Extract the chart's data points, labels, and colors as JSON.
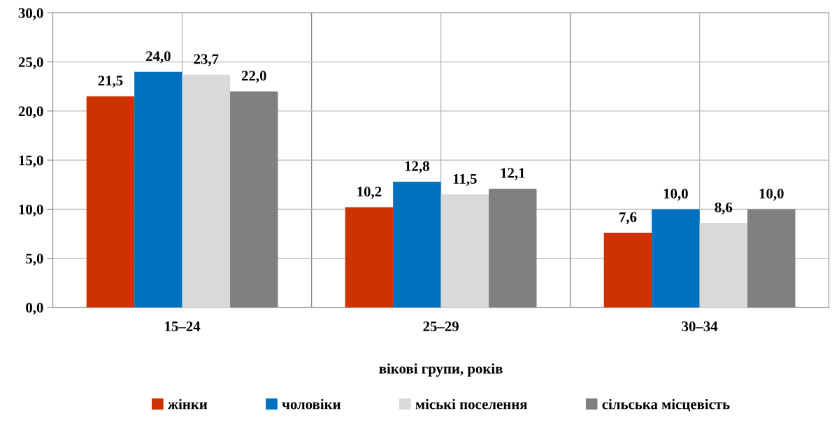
{
  "chart_data": {
    "type": "bar",
    "xlabel": "вікові групи, років",
    "categories": [
      "15–24",
      "25–29",
      "30–34"
    ],
    "series": [
      {
        "name": "жінки",
        "color": "#cc3300",
        "values": [
          21.5,
          10.2,
          7.6
        ],
        "value_labels": [
          "21,5",
          "10,2",
          "7,6"
        ]
      },
      {
        "name": "чоловіки",
        "color": "#0070c0",
        "values": [
          24.0,
          12.8,
          10.0
        ],
        "value_labels": [
          "24,0",
          "12,8",
          "10,0"
        ]
      },
      {
        "name": "міські поселення",
        "color": "#d9d9d9",
        "values": [
          23.7,
          11.5,
          8.6
        ],
        "value_labels": [
          "23,7",
          "11,5",
          "8,6"
        ]
      },
      {
        "name": "сільська місцевість",
        "color": "#808080",
        "values": [
          22.0,
          12.1,
          10.0
        ],
        "value_labels": [
          "22,0",
          "12,1",
          "10,0"
        ]
      }
    ],
    "ylim": [
      0,
      30
    ],
    "yticks": [
      {
        "value": 0,
        "label": "0,0"
      },
      {
        "value": 5,
        "label": "5,0"
      },
      {
        "value": 10,
        "label": "10,0"
      },
      {
        "value": 15,
        "label": "15,0"
      },
      {
        "value": 20,
        "label": "20,0"
      },
      {
        "value": 25,
        "label": "25,0"
      },
      {
        "value": 30,
        "label": "30,0"
      }
    ],
    "grid": true,
    "legend": "bottom"
  }
}
